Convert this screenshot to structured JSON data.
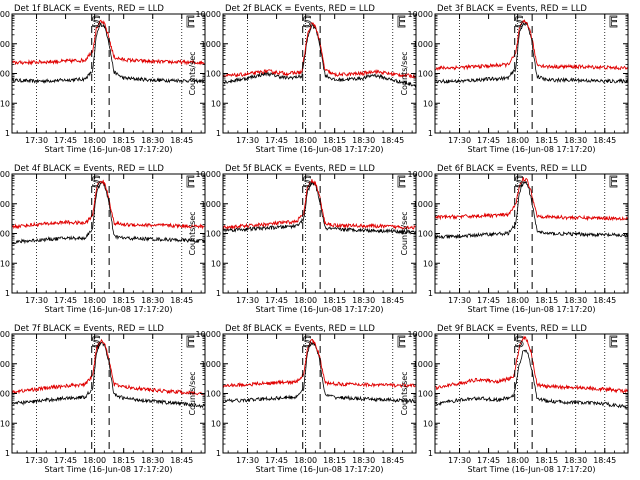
{
  "chart_data": {
    "type": "line",
    "yscale": "log",
    "ylim": [
      1,
      10000
    ],
    "ylabel": "Counts/sec",
    "xlabel": "Start Time (16-Jun-08 17:17:20)",
    "xlim": [
      "17:17:20",
      "18:57:00"
    ],
    "xticks": [
      "17:30",
      "17:45",
      "18:00",
      "18:15",
      "18:30",
      "18:45"
    ],
    "yticks": [
      "1",
      "10",
      "100",
      "1000",
      "10000"
    ],
    "grid_times": [
      "17:30",
      "18:00",
      "18:30",
      "18:45"
    ],
    "legend": "title",
    "series_colors": {
      "events": "#000000",
      "lld": "#e00000"
    },
    "panels": [
      {
        "title": "Det 1f BLACK = Events, RED = LLD",
        "letters": [
          "S",
          "E"
        ],
        "series": [
          {
            "x": [
              "17:17",
              "17:30",
              "17:45",
              "17:55",
              "17:59",
              "18:01",
              "18:03",
              "18:05",
              "18:07",
              "18:10",
              "18:15",
              "18:30",
              "18:45",
              "18:57"
            ],
            "values": [
              60,
              55,
              60,
              65,
              120,
              2000,
              4500,
              4000,
              1500,
              110,
              70,
              60,
              58,
              55
            ]
          },
          {
            "x": [
              "17:17",
              "17:30",
              "17:45",
              "17:55",
              "17:59",
              "18:01",
              "18:03",
              "18:05",
              "18:07",
              "18:10",
              "18:15",
              "18:30",
              "18:45",
              "18:57"
            ],
            "values": [
              230,
              240,
              260,
              280,
              600,
              3500,
              5500,
              4800,
              2000,
              350,
              290,
              250,
              240,
              230
            ]
          }
        ]
      },
      {
        "title": "Det 2f BLACK = Events, RED = LLD",
        "letters": [
          "S",
          "E"
        ],
        "series": [
          {
            "x": [
              "17:17",
              "17:30",
              "17:40",
              "17:50",
              "17:58",
              "18:01",
              "18:03",
              "18:05",
              "18:07",
              "18:10",
              "18:15",
              "18:30",
              "18:35",
              "18:45",
              "18:57"
            ],
            "values": [
              50,
              70,
              100,
              70,
              80,
              1500,
              4000,
              3500,
              1200,
              90,
              60,
              70,
              90,
              60,
              40
            ]
          },
          {
            "x": [
              "17:17",
              "17:30",
              "17:40",
              "17:50",
              "17:58",
              "18:01",
              "18:03",
              "18:05",
              "18:07",
              "18:10",
              "18:15",
              "18:30",
              "18:35",
              "18:45",
              "18:57"
            ],
            "values": [
              80,
              95,
              120,
              100,
              110,
              2000,
              4800,
              4000,
              1500,
              130,
              90,
              100,
              120,
              95,
              80
            ]
          }
        ]
      },
      {
        "title": "Det 3f BLACK = Events, RED = LLD",
        "letters": [
          "S",
          "E"
        ],
        "series": [
          {
            "x": [
              "17:17",
              "17:30",
              "17:45",
              "17:55",
              "17:59",
              "18:01",
              "18:03",
              "18:05",
              "18:07",
              "18:10",
              "18:15",
              "18:30",
              "18:45",
              "18:57"
            ],
            "values": [
              55,
              55,
              65,
              70,
              140,
              2500,
              5000,
              4500,
              1500,
              80,
              60,
              60,
              55,
              55
            ]
          },
          {
            "x": [
              "17:17",
              "17:30",
              "17:45",
              "17:55",
              "17:59",
              "18:01",
              "18:03",
              "18:05",
              "18:07",
              "18:10",
              "18:15",
              "18:30",
              "18:45",
              "18:57"
            ],
            "values": [
              150,
              160,
              180,
              200,
              450,
              3500,
              5500,
              5000,
              2000,
              200,
              170,
              170,
              160,
              150
            ]
          }
        ]
      },
      {
        "title": "Det 4f BLACK = Events, RED = LLD",
        "letters": [
          "S",
          "E"
        ],
        "series": [
          {
            "x": [
              "17:17",
              "17:30",
              "17:45",
              "17:55",
              "17:59",
              "18:01",
              "18:03",
              "18:05",
              "18:07",
              "18:10",
              "18:15",
              "18:30",
              "18:45",
              "18:57"
            ],
            "values": [
              50,
              60,
              70,
              70,
              150,
              2500,
              5000,
              4500,
              1500,
              80,
              70,
              65,
              60,
              55
            ]
          },
          {
            "x": [
              "17:17",
              "17:30",
              "17:45",
              "17:55",
              "17:59",
              "18:01",
              "18:03",
              "18:05",
              "18:07",
              "18:10",
              "18:15",
              "18:30",
              "18:45",
              "18:57"
            ],
            "values": [
              170,
              200,
              240,
              220,
              400,
              3500,
              6000,
              5000,
              2000,
              220,
              200,
              190,
              180,
              170
            ]
          }
        ]
      },
      {
        "title": "Det 5f BLACK = Events, RED = LLD",
        "letters": [
          "S",
          "E"
        ],
        "series": [
          {
            "x": [
              "17:17",
              "17:30",
              "17:45",
              "17:55",
              "17:59",
              "18:01",
              "18:03",
              "18:05",
              "18:07",
              "18:10",
              "18:15",
              "18:30",
              "18:45",
              "18:57"
            ],
            "values": [
              130,
              140,
              160,
              180,
              300,
              2500,
              5000,
              4500,
              1500,
              150,
              140,
              130,
              120,
              110
            ]
          },
          {
            "x": [
              "17:17",
              "17:30",
              "17:45",
              "17:55",
              "17:59",
              "18:01",
              "18:03",
              "18:05",
              "18:07",
              "18:10",
              "18:15",
              "18:30",
              "18:45",
              "18:57"
            ],
            "values": [
              160,
              180,
              220,
              250,
              450,
              3500,
              6000,
              5000,
              2000,
              220,
              190,
              180,
              170,
              160
            ]
          }
        ]
      },
      {
        "title": "Det 6f BLACK = Events, RED = LLD",
        "letters": [
          "S",
          "E"
        ],
        "series": [
          {
            "x": [
              "17:17",
              "17:30",
              "17:45",
              "17:55",
              "17:59",
              "18:01",
              "18:03",
              "18:05",
              "18:07",
              "18:10",
              "18:15",
              "18:30",
              "18:45",
              "18:57"
            ],
            "values": [
              75,
              80,
              95,
              100,
              200,
              2500,
              5500,
              5000,
              1500,
              120,
              100,
              95,
              90,
              85
            ]
          },
          {
            "x": [
              "17:17",
              "17:30",
              "17:45",
              "17:55",
              "17:59",
              "18:01",
              "18:03",
              "18:05",
              "18:07",
              "18:10",
              "18:15",
              "18:30",
              "18:45",
              "18:57"
            ],
            "values": [
              350,
              370,
              400,
              420,
              900,
              4500,
              7000,
              6000,
              2500,
              400,
              360,
              340,
              330,
              320
            ]
          }
        ]
      },
      {
        "title": "Det 7f BLACK = Events, RED = LLD",
        "letters": [
          "S",
          "E"
        ],
        "series": [
          {
            "x": [
              "17:17",
              "17:30",
              "17:45",
              "17:55",
              "17:59",
              "18:01",
              "18:03",
              "18:05",
              "18:07",
              "18:10",
              "18:15",
              "18:30",
              "18:45",
              "18:57"
            ],
            "values": [
              45,
              55,
              70,
              75,
              150,
              2500,
              5000,
              4500,
              1500,
              90,
              70,
              55,
              45,
              38
            ]
          },
          {
            "x": [
              "17:17",
              "17:30",
              "17:45",
              "17:55",
              "17:59",
              "18:01",
              "18:03",
              "18:05",
              "18:07",
              "18:10",
              "18:15",
              "18:30",
              "18:45",
              "18:57"
            ],
            "values": [
              110,
              140,
              180,
              200,
              400,
              3500,
              6000,
              5000,
              2000,
              200,
              170,
              130,
              110,
              95
            ]
          }
        ]
      },
      {
        "title": "Det 8f BLACK = Events, RED = LLD",
        "letters": [
          "S",
          "E"
        ],
        "series": [
          {
            "x": [
              "17:17",
              "17:30",
              "17:45",
              "17:55",
              "17:59",
              "18:01",
              "18:03",
              "18:05",
              "18:07",
              "18:10",
              "18:15",
              "18:30",
              "18:45",
              "18:57"
            ],
            "values": [
              55,
              60,
              70,
              75,
              150,
              2500,
              5000,
              4500,
              1500,
              90,
              75,
              65,
              60,
              55
            ]
          },
          {
            "x": [
              "17:17",
              "17:30",
              "17:45",
              "17:55",
              "17:59",
              "18:01",
              "18:03",
              "18:05",
              "18:07",
              "18:10",
              "18:15",
              "18:30",
              "18:45",
              "18:57"
            ],
            "values": [
              180,
              200,
              230,
              240,
              450,
              3500,
              6000,
              5000,
              2000,
              230,
              210,
              200,
              190,
              180
            ]
          }
        ]
      },
      {
        "title": "Det 9f BLACK = Events, RED = LLD",
        "letters": [
          "S",
          "E"
        ],
        "series": [
          {
            "x": [
              "17:17",
              "17:30",
              "17:40",
              "17:50",
              "17:58",
              "18:01",
              "18:03",
              "18:05",
              "18:07",
              "18:10",
              "18:15",
              "18:30",
              "18:45",
              "18:57"
            ],
            "values": [
              45,
              60,
              70,
              60,
              80,
              1000,
              3000,
              2500,
              800,
              70,
              55,
              50,
              45,
              35
            ]
          },
          {
            "x": [
              "17:17",
              "17:30",
              "17:40",
              "17:50",
              "17:58",
              "18:01",
              "18:03",
              "18:05",
              "18:07",
              "18:10",
              "18:15",
              "18:30",
              "18:45",
              "18:57"
            ],
            "values": [
              150,
              220,
              300,
              250,
              350,
              4000,
              8000,
              6000,
              2500,
              200,
              170,
              160,
              140,
              120
            ]
          }
        ]
      }
    ]
  }
}
